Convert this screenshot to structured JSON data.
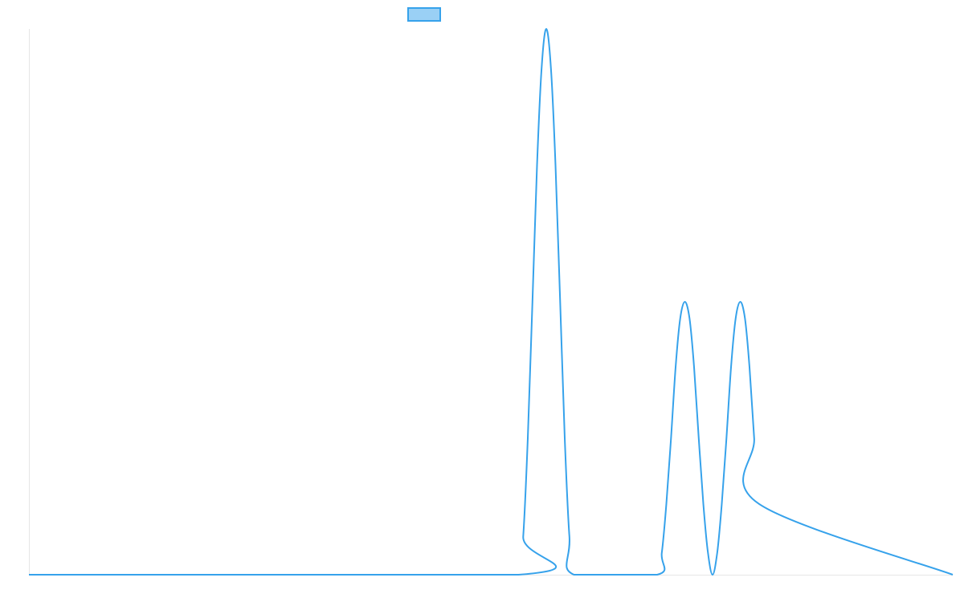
{
  "chart_data": {
    "type": "line",
    "title": "",
    "xlabel": "",
    "ylabel": "",
    "grid": false,
    "legend_position": "top",
    "xlim": [
      0,
      100
    ],
    "ylim": [
      0,
      1
    ],
    "series": [
      {
        "color": "#36a2eb",
        "fill": "#9ad0f5",
        "x": [
          0,
          53.0,
          53.5,
          54.0,
          54.5,
          55.0,
          55.5,
          56.0,
          56.5,
          57.0,
          57.5,
          58.0,
          58.5,
          59.0,
          68.0,
          68.5,
          69.0,
          69.5,
          70.0,
          70.5,
          71.0,
          71.5,
          72.0,
          72.5,
          73.0,
          73.5,
          74.0,
          74.5,
          75.0,
          75.5,
          76.0,
          76.5,
          77.0,
          77.5,
          78.0,
          78.5,
          79.0,
          100
        ],
        "values": [
          0,
          0,
          0.07,
          0.25,
          0.5,
          0.75,
          0.93,
          1.0,
          0.93,
          0.75,
          0.5,
          0.25,
          0.07,
          0,
          0,
          0.04,
          0.13,
          0.25,
          0.38,
          0.47,
          0.5,
          0.47,
          0.38,
          0.25,
          0.13,
          0.04,
          0,
          0.04,
          0.13,
          0.25,
          0.38,
          0.47,
          0.5,
          0.47,
          0.38,
          0.25,
          0.13,
          0
        ]
      }
    ]
  }
}
